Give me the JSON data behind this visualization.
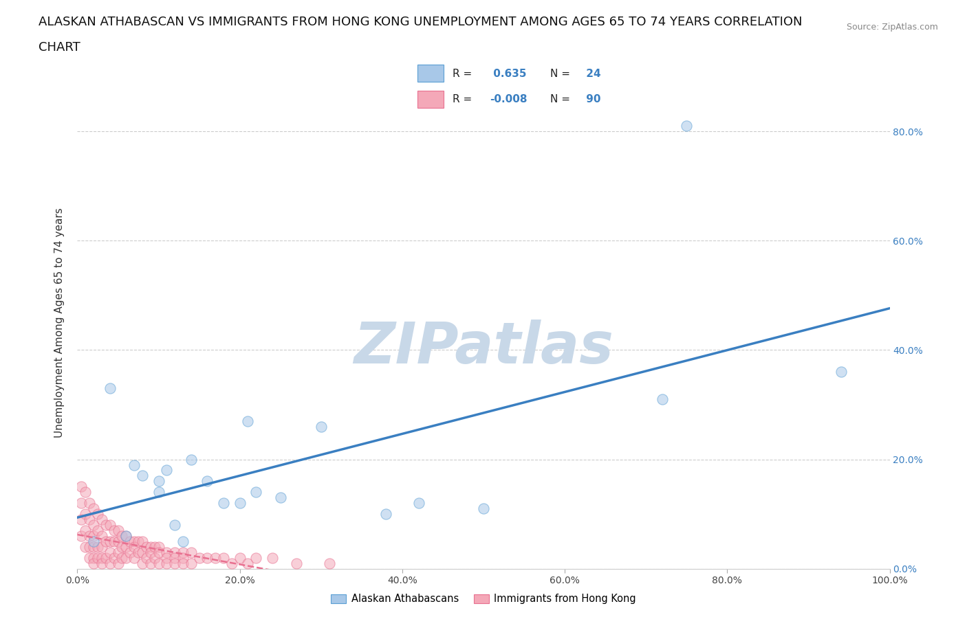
{
  "title_line1": "ALASKAN ATHABASCAN VS IMMIGRANTS FROM HONG KONG UNEMPLOYMENT AMONG AGES 65 TO 74 YEARS CORRELATION",
  "title_line2": "CHART",
  "source": "Source: ZipAtlas.com",
  "ylabel": "Unemployment Among Ages 65 to 74 years",
  "watermark": "ZIPatlas",
  "blue_R": 0.635,
  "blue_N": 24,
  "pink_R": -0.008,
  "pink_N": 90,
  "blue_color": "#a8c8e8",
  "pink_color": "#f4a8b8",
  "blue_edge_color": "#5a9fd4",
  "pink_edge_color": "#e87090",
  "blue_line_color": "#3a7fc1",
  "pink_line_color": "#e87090",
  "legend_blue_label": "Alaskan Athabascans",
  "legend_pink_label": "Immigrants from Hong Kong",
  "blue_scatter_x": [
    0.02,
    0.04,
    0.06,
    0.07,
    0.08,
    0.1,
    0.1,
    0.11,
    0.12,
    0.13,
    0.14,
    0.16,
    0.18,
    0.2,
    0.21,
    0.22,
    0.25,
    0.3,
    0.38,
    0.42,
    0.5,
    0.72,
    0.75,
    0.94
  ],
  "blue_scatter_y": [
    0.05,
    0.33,
    0.06,
    0.19,
    0.17,
    0.16,
    0.14,
    0.18,
    0.08,
    0.05,
    0.2,
    0.16,
    0.12,
    0.12,
    0.27,
    0.14,
    0.13,
    0.26,
    0.1,
    0.12,
    0.11,
    0.31,
    0.81,
    0.36
  ],
  "pink_scatter_x": [
    0.005,
    0.005,
    0.005,
    0.005,
    0.01,
    0.01,
    0.01,
    0.01,
    0.015,
    0.015,
    0.015,
    0.015,
    0.015,
    0.02,
    0.02,
    0.02,
    0.02,
    0.02,
    0.02,
    0.025,
    0.025,
    0.025,
    0.025,
    0.03,
    0.03,
    0.03,
    0.03,
    0.03,
    0.035,
    0.035,
    0.035,
    0.04,
    0.04,
    0.04,
    0.04,
    0.045,
    0.045,
    0.045,
    0.05,
    0.05,
    0.05,
    0.05,
    0.055,
    0.055,
    0.055,
    0.06,
    0.06,
    0.06,
    0.065,
    0.065,
    0.07,
    0.07,
    0.07,
    0.075,
    0.075,
    0.08,
    0.08,
    0.08,
    0.085,
    0.085,
    0.09,
    0.09,
    0.09,
    0.095,
    0.095,
    0.1,
    0.1,
    0.1,
    0.11,
    0.11,
    0.11,
    0.12,
    0.12,
    0.12,
    0.13,
    0.13,
    0.13,
    0.14,
    0.14,
    0.15,
    0.16,
    0.17,
    0.18,
    0.19,
    0.2,
    0.21,
    0.22,
    0.24,
    0.27,
    0.31
  ],
  "pink_scatter_y": [
    0.15,
    0.12,
    0.09,
    0.06,
    0.14,
    0.1,
    0.07,
    0.04,
    0.12,
    0.09,
    0.06,
    0.04,
    0.02,
    0.11,
    0.08,
    0.06,
    0.04,
    0.02,
    0.01,
    0.1,
    0.07,
    0.04,
    0.02,
    0.09,
    0.06,
    0.04,
    0.02,
    0.01,
    0.08,
    0.05,
    0.02,
    0.08,
    0.05,
    0.03,
    0.01,
    0.07,
    0.05,
    0.02,
    0.07,
    0.05,
    0.03,
    0.01,
    0.06,
    0.04,
    0.02,
    0.06,
    0.04,
    0.02,
    0.05,
    0.03,
    0.05,
    0.04,
    0.02,
    0.05,
    0.03,
    0.05,
    0.03,
    0.01,
    0.04,
    0.02,
    0.04,
    0.03,
    0.01,
    0.04,
    0.02,
    0.04,
    0.03,
    0.01,
    0.03,
    0.02,
    0.01,
    0.03,
    0.02,
    0.01,
    0.03,
    0.02,
    0.01,
    0.03,
    0.01,
    0.02,
    0.02,
    0.02,
    0.02,
    0.01,
    0.02,
    0.01,
    0.02,
    0.02,
    0.01,
    0.01
  ],
  "xlim": [
    0.0,
    1.0
  ],
  "ylim": [
    0.0,
    0.9
  ],
  "xtick_positions": [
    0.0,
    0.2,
    0.4,
    0.6,
    0.8,
    1.0
  ],
  "xtick_labels": [
    "0.0%",
    "20.0%",
    "40.0%",
    "60.0%",
    "80.0%",
    "100.0%"
  ],
  "ytick_positions": [
    0.0,
    0.2,
    0.4,
    0.6,
    0.8
  ],
  "ytick_labels_right": [
    "0.0%",
    "20.0%",
    "40.0%",
    "60.0%",
    "80.0%"
  ],
  "grid_color": "#cccccc",
  "bg_color": "#ffffff",
  "scatter_size": 120,
  "scatter_alpha": 0.55,
  "title_fontsize": 13,
  "axis_label_fontsize": 11,
  "tick_fontsize": 10,
  "watermark_color": "#c8d8e8",
  "watermark_fontsize": 60
}
